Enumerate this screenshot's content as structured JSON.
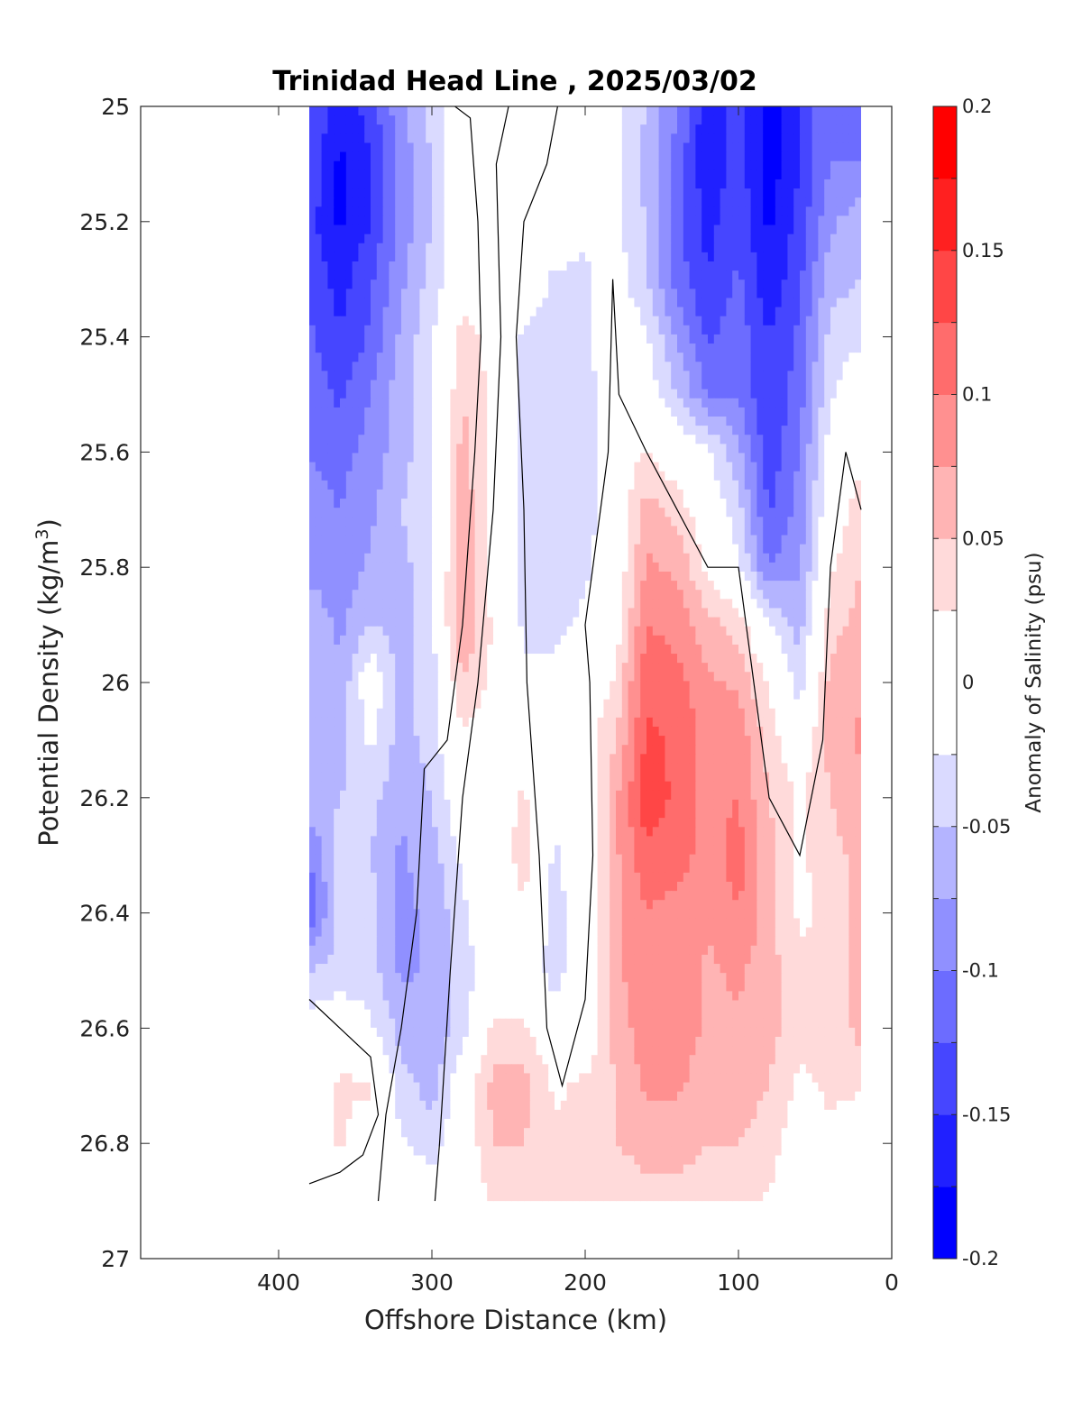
{
  "chart_data": {
    "type": "heatmap",
    "title": "Trinidad Head Line , 2025/03/02",
    "xlabel": "Offshore Distance (km)",
    "ylabel": "Potential Density (kg/m",
    "ylabel_sup": "3",
    "ylabel_close": ")",
    "xlim": [
      490,
      0
    ],
    "ylim": [
      25,
      27
    ],
    "xticks": [
      400,
      300,
      200,
      100,
      0
    ],
    "xtick_labels": [
      "400",
      "300",
      "200",
      "100",
      "0"
    ],
    "yticks": [
      25,
      25.2,
      25.4,
      25.6,
      25.8,
      26,
      26.2,
      26.4,
      26.6,
      26.8,
      27
    ],
    "ytick_labels": [
      "25",
      "25.2",
      "25.4",
      "25.6",
      "25.8",
      "26",
      "26.2",
      "26.4",
      "26.6",
      "26.8",
      "27"
    ],
    "data_extent": {
      "x": [
        380,
        20
      ],
      "y": [
        25,
        26.9
      ]
    },
    "colorbar": {
      "label": "Anomaly of Salinity (psu)",
      "range": [
        -0.2,
        0.2
      ],
      "levels": [
        -0.2,
        -0.175,
        -0.15,
        -0.125,
        -0.1,
        -0.075,
        -0.05,
        -0.025,
        0.025,
        0.05,
        0.075,
        0.1,
        0.125,
        0.15,
        0.175,
        0.2
      ],
      "colors": [
        "#0000ff",
        "#2020ff",
        "#4646ff",
        "#6c6cff",
        "#9090ff",
        "#b4b4ff",
        "#dadaff",
        "#ffffff",
        "#ffdada",
        "#ffb4b4",
        "#ff9090",
        "#ff6c6c",
        "#ff4646",
        "#ff2020",
        "#ff0000"
      ],
      "ticks": [
        -0.2,
        -0.15,
        -0.1,
        -0.05,
        0,
        0.05,
        0.1,
        0.15,
        0.2
      ],
      "tick_labels": [
        "-0.2",
        "-0.15",
        "-0.1",
        "-0.05",
        "0",
        "0.05",
        "0.1",
        "0.15",
        "0.2"
      ]
    },
    "anomaly_field": {
      "x": [
        380,
        360,
        340,
        320,
        300,
        280,
        260,
        240,
        220,
        200,
        180,
        160,
        140,
        120,
        100,
        80,
        60,
        40,
        20
      ],
      "y": [
        25.0,
        25.1,
        25.2,
        25.3,
        25.4,
        25.5,
        25.6,
        25.7,
        25.8,
        25.9,
        26.0,
        26.1,
        26.2,
        26.3,
        26.4,
        26.5,
        26.6,
        26.7,
        26.8,
        26.9
      ],
      "values": [
        [
          -0.12,
          -0.17,
          -0.14,
          -0.08,
          -0.04,
          0.0,
          0.01,
          0.01,
          0.0,
          -0.02,
          -0.02,
          -0.05,
          -0.1,
          -0.17,
          -0.14,
          -0.19,
          -0.15,
          -0.1,
          -0.12
        ],
        [
          -0.13,
          -0.18,
          -0.15,
          -0.09,
          -0.05,
          0.0,
          0.01,
          0.01,
          0.0,
          -0.02,
          -0.02,
          -0.06,
          -0.11,
          -0.17,
          -0.14,
          -0.19,
          -0.15,
          -0.1,
          -0.1
        ],
        [
          -0.14,
          -0.18,
          -0.15,
          -0.09,
          -0.05,
          0.0,
          0.01,
          0.01,
          0.0,
          -0.02,
          -0.02,
          -0.05,
          -0.12,
          -0.16,
          -0.13,
          -0.18,
          -0.14,
          -0.08,
          -0.06
        ],
        [
          -0.13,
          -0.16,
          -0.13,
          -0.08,
          -0.04,
          0.0,
          0.02,
          0.0,
          -0.03,
          -0.03,
          -0.01,
          -0.05,
          -0.11,
          -0.15,
          -0.12,
          -0.17,
          -0.13,
          -0.06,
          -0.05
        ],
        [
          -0.12,
          -0.15,
          -0.12,
          -0.07,
          -0.03,
          0.04,
          0.01,
          -0.03,
          -0.04,
          -0.03,
          0.0,
          -0.02,
          -0.08,
          -0.13,
          -0.11,
          -0.15,
          -0.12,
          -0.04,
          -0.03
        ],
        [
          -0.11,
          -0.13,
          -0.1,
          -0.06,
          -0.03,
          0.05,
          0.02,
          -0.04,
          -0.04,
          -0.04,
          0.0,
          -0.01,
          -0.05,
          -0.1,
          -0.1,
          -0.15,
          -0.11,
          -0.03,
          0.0
        ],
        [
          -0.1,
          -0.11,
          -0.09,
          -0.06,
          -0.03,
          0.06,
          0.01,
          -0.03,
          -0.04,
          -0.04,
          0.0,
          0.03,
          0.0,
          -0.02,
          -0.07,
          -0.14,
          -0.1,
          -0.01,
          0.02
        ],
        [
          -0.09,
          -0.1,
          -0.08,
          -0.05,
          -0.03,
          0.07,
          0.01,
          -0.03,
          -0.04,
          -0.04,
          0.0,
          0.06,
          0.04,
          0.0,
          -0.04,
          -0.13,
          -0.09,
          0.0,
          0.04
        ],
        [
          -0.08,
          -0.09,
          -0.07,
          -0.06,
          -0.03,
          0.08,
          0.01,
          -0.03,
          -0.04,
          -0.03,
          0.0,
          0.08,
          0.07,
          0.02,
          -0.02,
          -0.1,
          -0.08,
          0.02,
          0.05
        ],
        [
          -0.06,
          -0.08,
          -0.05,
          -0.06,
          -0.03,
          0.08,
          0.02,
          -0.03,
          -0.03,
          -0.02,
          0.01,
          0.1,
          0.09,
          0.06,
          0.04,
          -0.02,
          -0.06,
          0.04,
          0.06
        ],
        [
          -0.05,
          -0.07,
          0.0,
          -0.06,
          -0.04,
          0.05,
          0.02,
          -0.02,
          -0.02,
          0.0,
          0.03,
          0.12,
          0.11,
          0.08,
          0.07,
          0.02,
          -0.04,
          0.06,
          0.07
        ],
        [
          -0.05,
          -0.06,
          -0.02,
          -0.06,
          -0.04,
          0.02,
          0.0,
          0.0,
          0.0,
          0.01,
          0.05,
          0.13,
          0.12,
          0.09,
          0.09,
          0.04,
          0.0,
          0.06,
          0.08
        ],
        [
          -0.06,
          -0.05,
          -0.04,
          -0.07,
          -0.05,
          0.0,
          0.0,
          0.03,
          -0.02,
          0.0,
          0.07,
          0.14,
          0.12,
          0.09,
          0.1,
          0.05,
          0.02,
          0.05,
          0.07
        ],
        [
          -0.1,
          -0.04,
          -0.05,
          -0.08,
          -0.06,
          -0.02,
          0.0,
          0.04,
          -0.03,
          0.0,
          0.07,
          0.12,
          0.11,
          0.09,
          0.11,
          0.06,
          0.02,
          0.04,
          0.06
        ],
        [
          -0.12,
          -0.04,
          -0.04,
          -0.08,
          -0.07,
          -0.03,
          0.0,
          0.02,
          -0.04,
          0.0,
          0.07,
          0.1,
          0.09,
          0.08,
          0.1,
          0.06,
          0.02,
          0.03,
          0.06
        ],
        [
          -0.05,
          -0.04,
          -0.04,
          -0.08,
          -0.07,
          -0.04,
          0.0,
          0.0,
          -0.04,
          0.0,
          0.07,
          0.09,
          0.09,
          0.07,
          0.08,
          0.06,
          0.03,
          0.03,
          0.06
        ],
        [
          -0.01,
          0.0,
          -0.02,
          -0.06,
          -0.07,
          -0.04,
          0.03,
          0.03,
          0.0,
          0.0,
          0.06,
          0.09,
          0.09,
          0.07,
          0.07,
          0.06,
          0.03,
          0.03,
          0.06
        ],
        [
          0.0,
          0.03,
          0.03,
          -0.04,
          -0.06,
          0.0,
          0.06,
          0.06,
          0.02,
          0.03,
          0.05,
          0.08,
          0.08,
          0.06,
          0.06,
          0.05,
          0.02,
          0.03,
          0.03
        ],
        [
          0.0,
          0.03,
          0.0,
          -0.02,
          -0.04,
          0.0,
          0.05,
          0.05,
          0.03,
          0.03,
          0.05,
          0.06,
          0.06,
          0.05,
          0.05,
          0.04,
          0.0,
          0.02,
          0.0
        ],
        [
          0.0,
          0.0,
          0.0,
          0.0,
          0.0,
          0.0,
          0.03,
          0.03,
          0.03,
          0.03,
          0.03,
          0.04,
          0.04,
          0.04,
          0.04,
          0.02,
          0.0,
          0.0,
          0.0
        ]
      ]
    },
    "zero_contours": [
      [
        [
          285,
          25.0
        ],
        [
          275,
          25.02
        ],
        [
          270,
          25.2
        ],
        [
          268,
          25.4
        ],
        [
          272,
          25.6
        ],
        [
          280,
          25.9
        ],
        [
          290,
          26.1
        ],
        [
          305,
          26.15
        ],
        [
          310,
          26.4
        ],
        [
          320,
          26.6
        ],
        [
          330,
          26.75
        ],
        [
          335,
          26.9
        ]
      ],
      [
        [
          250,
          25.0
        ],
        [
          258,
          25.1
        ],
        [
          255,
          25.4
        ],
        [
          260,
          25.7
        ],
        [
          270,
          26.0
        ],
        [
          280,
          26.2
        ],
        [
          288,
          26.5
        ],
        [
          295,
          26.8
        ],
        [
          298,
          26.9
        ]
      ],
      [
        [
          218,
          25.0
        ],
        [
          225,
          25.1
        ],
        [
          240,
          25.2
        ],
        [
          245,
          25.4
        ],
        [
          240,
          25.7
        ],
        [
          238,
          26.0
        ],
        [
          230,
          26.3
        ],
        [
          225,
          26.6
        ],
        [
          215,
          26.7
        ],
        [
          200,
          26.55
        ],
        [
          195,
          26.3
        ],
        [
          197,
          26.0
        ],
        [
          200,
          25.9
        ],
        [
          185,
          25.6
        ],
        [
          182,
          25.3
        ],
        [
          178,
          25.5
        ],
        [
          160,
          25.6
        ],
        [
          140,
          25.7
        ],
        [
          120,
          25.8
        ],
        [
          100,
          25.8
        ],
        [
          90,
          26.0
        ],
        [
          80,
          26.2
        ],
        [
          60,
          26.3
        ],
        [
          45,
          26.1
        ],
        [
          40,
          25.8
        ],
        [
          30,
          25.6
        ],
        [
          20,
          25.7
        ]
      ],
      [
        [
          380,
          26.55
        ],
        [
          360,
          26.6
        ],
        [
          340,
          26.65
        ],
        [
          335,
          26.75
        ],
        [
          345,
          26.82
        ],
        [
          360,
          26.85
        ],
        [
          380,
          26.87
        ]
      ]
    ]
  }
}
